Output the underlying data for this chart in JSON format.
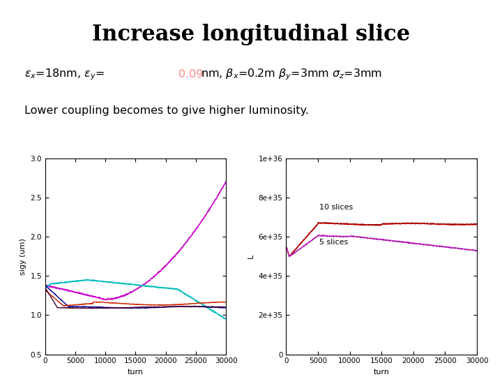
{
  "title": "Increase longitudinal slice",
  "subtitle_line2": "Lower coupling becomes to give higher luminosity.",
  "background_color": "#ffffff",
  "plot1": {
    "ylabel": "sigy (um)",
    "xlabel": "turn",
    "xlim": [
      0,
      30000
    ],
    "ylim": [
      0.5,
      3.0
    ],
    "yticks": [
      0.5,
      1.0,
      1.5,
      2.0,
      2.5,
      3.0
    ],
    "xticks": [
      0,
      5000,
      10000,
      15000,
      20000,
      25000,
      30000
    ]
  },
  "plot2": {
    "ylabel": "L",
    "xlabel": "turn",
    "xlim": [
      0,
      30000
    ],
    "ylim": [
      0,
      1e+36
    ],
    "yticks": [
      0,
      2e+35,
      4e+35,
      6e+35,
      8e+35,
      1e+36
    ],
    "xticks": [
      0,
      5000,
      10000,
      15000,
      20000,
      25000,
      30000
    ],
    "label_10slices": "10 slices",
    "label_5slices": "5 slices"
  }
}
